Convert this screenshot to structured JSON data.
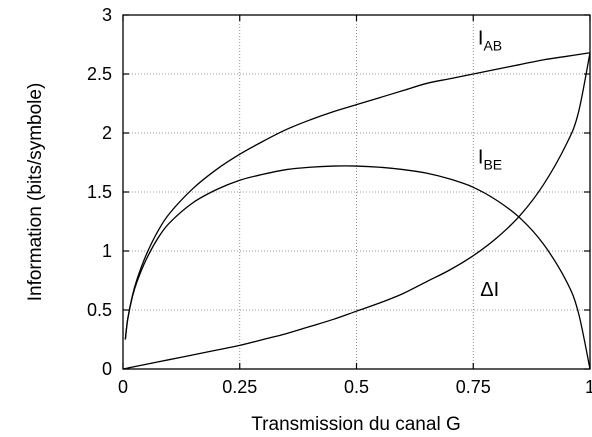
{
  "chart_data": {
    "type": "line",
    "xlabel": "Transmission du canal G",
    "ylabel": "Information (bits/symbole)",
    "xlim": [
      0,
      1
    ],
    "ylim": [
      0,
      3
    ],
    "grid": true,
    "x_ticks": [
      {
        "value": 0,
        "label": "0"
      },
      {
        "value": 0.25,
        "label": "0.25"
      },
      {
        "value": 0.5,
        "label": "0.5"
      },
      {
        "value": 0.75,
        "label": "0.75"
      },
      {
        "value": 1,
        "label": "1"
      }
    ],
    "y_ticks": [
      {
        "value": 0,
        "label": "0"
      },
      {
        "value": 0.5,
        "label": "0.5"
      },
      {
        "value": 1,
        "label": "1"
      },
      {
        "value": 1.5,
        "label": "1.5"
      },
      {
        "value": 2,
        "label": "2"
      },
      {
        "value": 2.5,
        "label": "2.5"
      },
      {
        "value": 3,
        "label": "3"
      }
    ],
    "series": [
      {
        "label_main": "I",
        "label_sub": "AB",
        "label_at": [
          0.76,
          2.75
        ],
        "x": [
          0.005,
          0.01,
          0.02,
          0.03,
          0.05,
          0.075,
          0.1,
          0.15,
          0.2,
          0.25,
          0.3,
          0.35,
          0.4,
          0.45,
          0.5,
          0.55,
          0.6,
          0.65,
          0.7,
          0.75,
          0.8,
          0.85,
          0.9,
          0.95,
          1.0
        ],
        "y": [
          0.25,
          0.42,
          0.62,
          0.76,
          0.97,
          1.17,
          1.32,
          1.53,
          1.69,
          1.82,
          1.93,
          2.03,
          2.11,
          2.18,
          2.24,
          2.3,
          2.36,
          2.42,
          2.46,
          2.5,
          2.54,
          2.58,
          2.62,
          2.65,
          2.68
        ]
      },
      {
        "label_main": "I",
        "label_sub": "BE",
        "label_at": [
          0.76,
          1.74
        ],
        "x": [
          0.005,
          0.01,
          0.02,
          0.03,
          0.05,
          0.075,
          0.1,
          0.15,
          0.2,
          0.25,
          0.3,
          0.35,
          0.4,
          0.45,
          0.5,
          0.55,
          0.6,
          0.65,
          0.7,
          0.75,
          0.8,
          0.85,
          0.9,
          0.95,
          0.975,
          1.0
        ],
        "y": [
          0.25,
          0.42,
          0.61,
          0.74,
          0.93,
          1.11,
          1.24,
          1.41,
          1.52,
          1.6,
          1.65,
          1.69,
          1.71,
          1.72,
          1.72,
          1.71,
          1.69,
          1.66,
          1.61,
          1.54,
          1.43,
          1.28,
          1.06,
          0.74,
          0.48,
          0.0
        ]
      },
      {
        "label_main": "ΔI",
        "label_sub": "",
        "label_at": [
          0.765,
          0.62
        ],
        "x": [
          0.0,
          0.05,
          0.1,
          0.15,
          0.2,
          0.25,
          0.3,
          0.35,
          0.4,
          0.45,
          0.5,
          0.55,
          0.6,
          0.65,
          0.7,
          0.75,
          0.8,
          0.85,
          0.9,
          0.95,
          0.975,
          1.0
        ],
        "y": [
          0.0,
          0.04,
          0.08,
          0.12,
          0.16,
          0.2,
          0.25,
          0.3,
          0.36,
          0.42,
          0.49,
          0.56,
          0.64,
          0.74,
          0.84,
          0.96,
          1.11,
          1.3,
          1.56,
          1.91,
          2.17,
          2.68
        ]
      }
    ]
  }
}
